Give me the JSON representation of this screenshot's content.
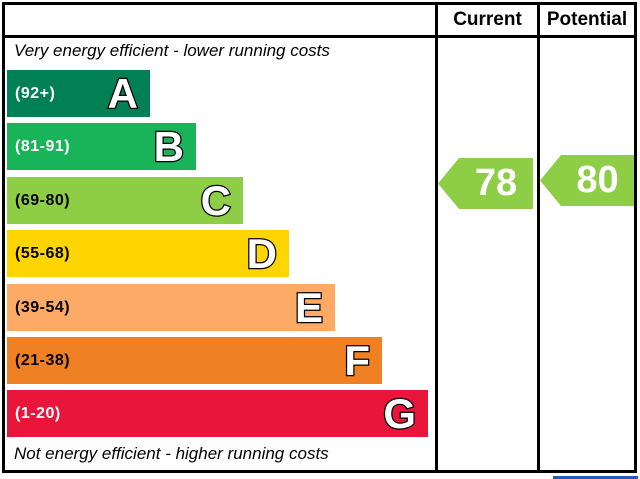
{
  "header": {
    "current": "Current",
    "potential": "Potential"
  },
  "captions": {
    "top": "Very energy efficient - lower running costs",
    "bottom": "Not energy efficient - higher running costs"
  },
  "bands": [
    {
      "letter": "A",
      "range": "(92+)",
      "color": "#008054",
      "label_color": "#ffffff"
    },
    {
      "letter": "B",
      "range": "(81-91)",
      "color": "#19b459",
      "label_color": "#ffffff"
    },
    {
      "letter": "C",
      "range": "(69-80)",
      "color": "#8dce46",
      "label_color": "#000000"
    },
    {
      "letter": "D",
      "range": "(55-68)",
      "color": "#ffd500",
      "label_color": "#000000"
    },
    {
      "letter": "E",
      "range": "(39-54)",
      "color": "#fcaa65",
      "label_color": "#000000"
    },
    {
      "letter": "F",
      "range": "(21-38)",
      "color": "#ef8023",
      "label_color": "#000000"
    },
    {
      "letter": "G",
      "range": "(1-20)",
      "color": "#e9153b",
      "label_color": "#ffffff"
    }
  ],
  "current": {
    "value": "78",
    "color": "#8dce46"
  },
  "potential": {
    "value": "80",
    "color": "#8dce46"
  },
  "misc": {
    "partial_blue_bar_color": "#2a5ab4"
  },
  "chart_data": {
    "type": "bar",
    "orientation": "horizontal",
    "categories": [
      "A",
      "B",
      "C",
      "D",
      "E",
      "F",
      "G"
    ],
    "band_ranges": [
      "92+",
      "81-91",
      "69-80",
      "55-68",
      "39-54",
      "21-38",
      "1-20"
    ],
    "band_colors": [
      "#008054",
      "#19b459",
      "#8dce46",
      "#ffd500",
      "#fcaa65",
      "#ef8023",
      "#e9153b"
    ],
    "bar_lengths_relative": [
      0.34,
      0.45,
      0.56,
      0.67,
      0.78,
      0.89,
      1.0
    ],
    "markers": [
      {
        "name": "Current",
        "value": 78,
        "band": "C",
        "color": "#8dce46"
      },
      {
        "name": "Potential",
        "value": 80,
        "band": "C",
        "color": "#8dce46"
      }
    ],
    "top_annotation": "Very energy efficient - lower running costs",
    "bottom_annotation": "Not energy efficient - higher running costs",
    "column_headers": [
      "Current",
      "Potential"
    ],
    "value_range": [
      1,
      100
    ],
    "grid": false,
    "legend_position": "none"
  }
}
